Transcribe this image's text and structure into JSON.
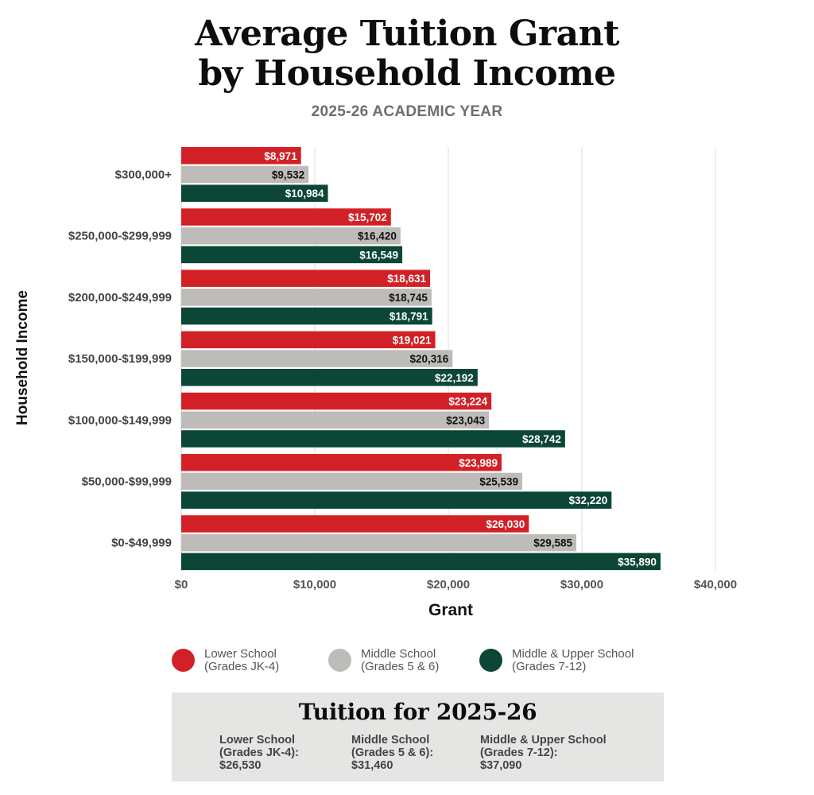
{
  "title_line1": "Average Tuition Grant",
  "title_line2": "by Household Income",
  "subtitle": "2025-26 ACADEMIC YEAR",
  "colors": {
    "lower": "#d12127",
    "middle": "#bebcb8",
    "upper": "#0b4637"
  },
  "chart_data": {
    "type": "bar",
    "orientation": "horizontal",
    "categories": [
      "$300,000+",
      "$250,000-$299,999",
      "$200,000-$249,999",
      "$150,000-$199,999",
      "$100,000-$149,999",
      "$50,000-$99,999",
      "$0-$49,999"
    ],
    "series": [
      {
        "name": "Lower School (Grades JK-4)",
        "values": [
          8971,
          15702,
          18631,
          19021,
          23224,
          23989,
          26030
        ],
        "labels": [
          "$8,971",
          "$15,702",
          "$18,631",
          "$19,021",
          "$23,224",
          "$23,989",
          "$26,030"
        ]
      },
      {
        "name": "Middle School (Grades 5 & 6)",
        "values": [
          9532,
          16420,
          18745,
          20316,
          23043,
          25539,
          29585
        ],
        "labels": [
          "$9,532",
          "$16,420",
          "$18,745",
          "$20,316",
          "$23,043",
          "$25,539",
          "$29,585"
        ]
      },
      {
        "name": "Middle & Upper School (Grades 7-12)",
        "values": [
          10984,
          16549,
          18791,
          22192,
          28742,
          32220,
          35890
        ],
        "labels": [
          "$10,984",
          "$16,549",
          "$18,791",
          "$22,192",
          "$28,742",
          "$32,220",
          "$35,890"
        ]
      }
    ],
    "xlabel": "Grant",
    "ylabel": "Household Income",
    "xlim": [
      0,
      40000
    ],
    "xticks": [
      0,
      10000,
      20000,
      30000,
      40000
    ],
    "xtick_labels": [
      "$0",
      "$10,000",
      "$20,000",
      "$30,000",
      "$40,000"
    ],
    "grid": true,
    "legend_position": "bottom"
  },
  "legend": [
    {
      "line1": "Lower School",
      "line2": "(Grades JK-4)"
    },
    {
      "line1": "Middle School",
      "line2": "(Grades 5 & 6)"
    },
    {
      "line1": "Middle & Upper School",
      "line2": "(Grades 7-12)"
    }
  ],
  "tuition": {
    "title": "Tuition for 2025-26",
    "columns": [
      {
        "line1": "Lower School",
        "line2": "(Grades JK-4):",
        "amount": "$26,530"
      },
      {
        "line1": "Middle School",
        "line2": "(Grades 5 & 6):",
        "amount": "$31,460"
      },
      {
        "line1": "Middle & Upper School",
        "line2": "(Grades 7-12):",
        "amount": "$37,090"
      }
    ]
  }
}
